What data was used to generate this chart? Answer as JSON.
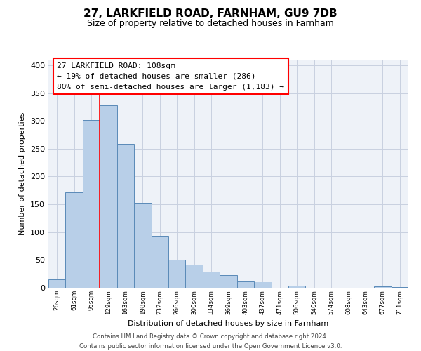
{
  "title": "27, LARKFIELD ROAD, FARNHAM, GU9 7DB",
  "subtitle": "Size of property relative to detached houses in Farnham",
  "xlabel": "Distribution of detached houses by size in Farnham",
  "ylabel": "Number of detached properties",
  "bar_labels": [
    "26sqm",
    "61sqm",
    "95sqm",
    "129sqm",
    "163sqm",
    "198sqm",
    "232sqm",
    "266sqm",
    "300sqm",
    "334sqm",
    "369sqm",
    "403sqm",
    "437sqm",
    "471sqm",
    "506sqm",
    "540sqm",
    "574sqm",
    "608sqm",
    "643sqm",
    "677sqm",
    "711sqm"
  ],
  "bar_values": [
    15,
    172,
    301,
    328,
    259,
    153,
    93,
    50,
    42,
    29,
    23,
    13,
    11,
    0,
    4,
    0,
    0,
    0,
    0,
    2,
    1
  ],
  "bar_color": "#b8cfe8",
  "bar_edge_color": "#5a8ab8",
  "ann_line1": "27 LARKFIELD ROAD: 108sqm",
  "ann_line2": "← 19% of detached houses are smaller (286)",
  "ann_line3": "80% of semi-detached houses are larger (1,183) →",
  "red_line_x": 2.5,
  "ylim": [
    0,
    410
  ],
  "yticks": [
    0,
    50,
    100,
    150,
    200,
    250,
    300,
    350,
    400
  ],
  "footer_line1": "Contains HM Land Registry data © Crown copyright and database right 2024.",
  "footer_line2": "Contains public sector information licensed under the Open Government Licence v3.0.",
  "background_color": "#ffffff",
  "plot_bg_color": "#eef2f8",
  "grid_color": "#c8d0e0"
}
